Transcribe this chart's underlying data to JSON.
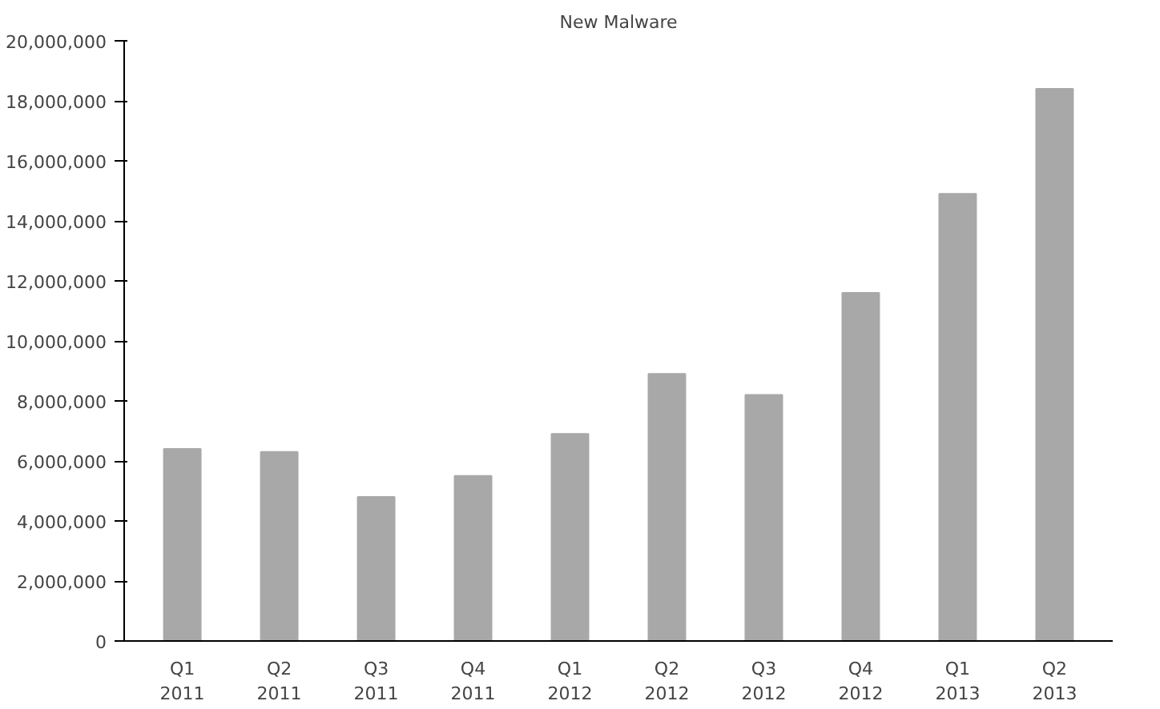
{
  "chart_data": {
    "type": "bar",
    "title": "New Malware",
    "categories": [
      "Q1\n2011",
      "Q2\n2011",
      "Q3\n2011",
      "Q4\n2011",
      "Q1\n2012",
      "Q2\n2012",
      "Q3\n2012",
      "Q4\n2012",
      "Q1\n2013",
      "Q2\n2013"
    ],
    "values": [
      6400000,
      6300000,
      4800000,
      5500000,
      6900000,
      8900000,
      8200000,
      11600000,
      14900000,
      18400000
    ],
    "color": "#a8a8a8",
    "ylim": [
      0,
      20000000
    ],
    "yticks": [
      {
        "value": 0,
        "label": "0"
      },
      {
        "value": 2000000,
        "label": "2,000,000"
      },
      {
        "value": 4000000,
        "label": "4,000,000"
      },
      {
        "value": 6000000,
        "label": "6,000,000"
      },
      {
        "value": 8000000,
        "label": "8,000,000"
      },
      {
        "value": 10000000,
        "label": "10,000,000"
      },
      {
        "value": 12000000,
        "label": "12,000,000"
      },
      {
        "value": 14000000,
        "label": "14,000,000"
      },
      {
        "value": 16000000,
        "label": "16,000,000"
      },
      {
        "value": 18000000,
        "label": "18,000,000"
      },
      {
        "value": 20000000,
        "label": "20,000,000"
      }
    ],
    "grid": false
  }
}
